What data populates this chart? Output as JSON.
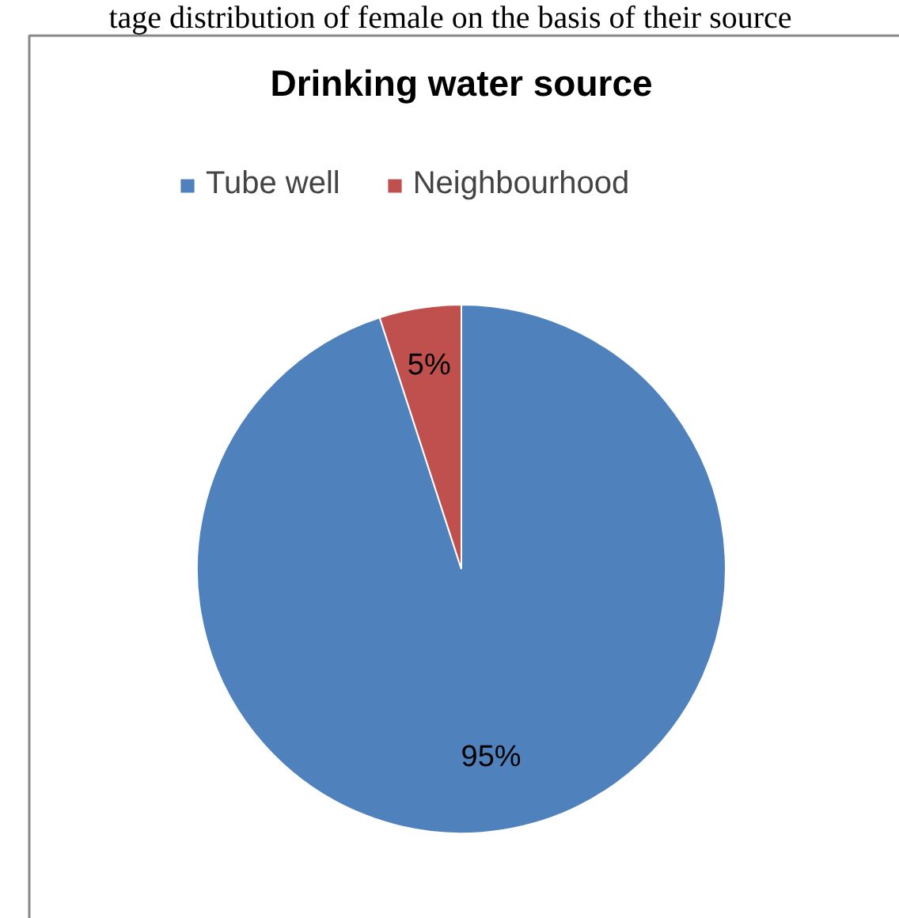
{
  "chart_data": {
    "type": "pie",
    "title": "Drinking water source",
    "annotations": [
      "tage distribution of female on the basis of their source"
    ],
    "categories": [
      "Tube well",
      "Neighbourhood"
    ],
    "values": [
      95,
      5
    ],
    "colors": [
      "#4f81bd",
      "#c0504d"
    ],
    "value_labels": [
      "95%",
      "5%"
    ],
    "legend": "top"
  }
}
